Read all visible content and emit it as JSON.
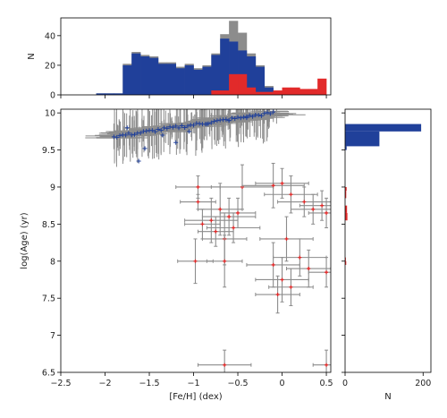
{
  "chart_data": [
    {
      "type": "histogram",
      "panel": "top",
      "ylabel": "N",
      "xlim": [
        -2.5,
        0.55
      ],
      "ylim": [
        0,
        52
      ],
      "yticks": [
        0,
        20,
        40
      ],
      "bin_edges": [
        -2.5,
        -2.4,
        -2.3,
        -2.2,
        -2.1,
        -2.0,
        -1.9,
        -1.8,
        -1.7,
        -1.6,
        -1.5,
        -1.4,
        -1.3,
        -1.2,
        -1.1,
        -1.0,
        -0.9,
        -0.8,
        -0.7,
        -0.6,
        -0.5,
        -0.4,
        -0.3,
        -0.2,
        -0.1,
        0.0,
        0.1,
        0.2,
        0.3,
        0.4,
        0.5
      ],
      "series": [
        {
          "color": "#8c8c8c",
          "values": [
            0,
            0,
            0,
            0,
            1,
            1,
            1,
            21,
            29,
            27,
            26,
            22,
            22,
            19,
            21,
            18,
            20,
            28,
            41,
            50,
            42,
            28,
            20,
            6,
            2,
            0,
            0,
            0,
            0,
            0
          ]
        },
        {
          "color": "#20409a",
          "values": [
            0,
            0,
            0,
            0,
            1,
            1,
            1,
            20,
            28,
            26,
            25,
            21,
            21,
            18,
            20,
            17,
            19,
            27,
            38,
            36,
            30,
            26,
            19,
            5,
            2,
            0,
            0,
            0,
            0,
            0
          ]
        },
        {
          "color": "#e22a2a",
          "values": [
            0,
            0,
            0,
            0,
            0,
            0,
            0,
            0,
            0,
            0,
            0,
            0,
            0,
            0,
            0,
            0,
            0,
            3,
            3,
            14,
            14,
            5,
            2,
            2,
            3,
            5,
            5,
            4,
            4,
            11
          ]
        }
      ]
    },
    {
      "type": "scatter",
      "panel": "main",
      "xlabel": "[Fe/H] (dex)",
      "ylabel": "log(Age) (yr)",
      "xlim": [
        -2.5,
        0.55
      ],
      "ylim": [
        6.5,
        10.05
      ],
      "xticks": [
        -2.5,
        -2.0,
        -1.5,
        -1.0,
        -0.5,
        0.0,
        0.5
      ],
      "yticks": [
        6.5,
        7.0,
        7.5,
        8.0,
        8.5,
        9.0,
        9.5,
        10.0
      ],
      "error_color": "#8c8c8c",
      "series": [
        {
          "color": "#20409a",
          "trend": {
            "x_start": -1.9,
            "x_end": -0.1,
            "y_start": 9.68,
            "y_end": 10.0
          },
          "points": [
            [
              -1.62,
              9.35
            ],
            [
              -1.55,
              9.52
            ],
            [
              -1.2,
              9.6
            ],
            [
              -1.75,
              9.8
            ],
            [
              -1.35,
              9.7
            ],
            [
              -1.05,
              9.75
            ],
            [
              -0.85,
              9.85
            ],
            [
              -0.6,
              9.9
            ],
            [
              -0.4,
              9.95
            ],
            [
              -0.3,
              9.97
            ]
          ]
        },
        {
          "color": "#e22a2a",
          "points": [
            {
              "x": -0.45,
              "y": 9.0,
              "xerr": 0.35,
              "yerr": 0.3
            },
            {
              "x": -0.95,
              "y": 9.0,
              "xerr": 0.25,
              "yerr": 0.15
            },
            {
              "x": -0.1,
              "y": 9.02,
              "xerr": 0.35,
              "yerr": 0.3
            },
            {
              "x": 0.0,
              "y": 9.05,
              "xerr": 0.3,
              "yerr": 0.2
            },
            {
              "x": 0.1,
              "y": 8.9,
              "xerr": 0.3,
              "yerr": 0.25
            },
            {
              "x": 0.25,
              "y": 8.8,
              "xerr": 0.3,
              "yerr": 0.2
            },
            {
              "x": 0.35,
              "y": 8.7,
              "xerr": 0.25,
              "yerr": 0.2
            },
            {
              "x": 0.45,
              "y": 8.75,
              "xerr": 0.25,
              "yerr": 0.2
            },
            {
              "x": 0.5,
              "y": 8.65,
              "xerr": 0.2,
              "yerr": 0.2
            },
            {
              "x": -0.95,
              "y": 8.8,
              "xerr": 0.2,
              "yerr": 0.1
            },
            {
              "x": -0.7,
              "y": 8.7,
              "xerr": 0.25,
              "yerr": 0.35
            },
            {
              "x": -0.8,
              "y": 8.55,
              "xerr": 0.3,
              "yerr": 0.3
            },
            {
              "x": -0.6,
              "y": 8.6,
              "xerr": 0.3,
              "yerr": 0.25
            },
            {
              "x": -0.55,
              "y": 8.45,
              "xerr": 0.3,
              "yerr": 0.2
            },
            {
              "x": -0.65,
              "y": 8.3,
              "xerr": 0.25,
              "yerr": 0.35
            },
            {
              "x": -0.9,
              "y": 8.5,
              "xerr": 0.2,
              "yerr": 0.2
            },
            {
              "x": -0.5,
              "y": 8.65,
              "xerr": 0.2,
              "yerr": 0.2
            },
            {
              "x": -0.75,
              "y": 8.4,
              "xerr": 0.2,
              "yerr": 0.2
            },
            {
              "x": 0.05,
              "y": 8.3,
              "xerr": 0.3,
              "yerr": 0.3
            },
            {
              "x": 0.2,
              "y": 8.05,
              "xerr": 0.3,
              "yerr": 0.25
            },
            {
              "x": -0.1,
              "y": 7.95,
              "xerr": 0.3,
              "yerr": 0.3
            },
            {
              "x": 0.0,
              "y": 7.75,
              "xerr": 0.3,
              "yerr": 0.3
            },
            {
              "x": 0.3,
              "y": 7.9,
              "xerr": 0.25,
              "yerr": 0.25
            },
            {
              "x": 0.1,
              "y": 7.65,
              "xerr": 0.25,
              "yerr": 0.25
            },
            {
              "x": -0.05,
              "y": 7.55,
              "xerr": 0.25,
              "yerr": 0.25
            },
            {
              "x": -0.98,
              "y": 8.0,
              "xerr": 0.2,
              "yerr": 0.3
            },
            {
              "x": -0.65,
              "y": 8.0,
              "xerr": 0.2,
              "yerr": 0.35
            },
            {
              "x": 0.5,
              "y": 7.85,
              "xerr": 0.2,
              "yerr": 0.2
            },
            {
              "x": -0.65,
              "y": 6.6,
              "xerr": 0.3,
              "yerr": 0.2
            },
            {
              "x": 0.5,
              "y": 6.6,
              "xerr": 0.15,
              "yerr": 0.2
            }
          ]
        }
      ]
    },
    {
      "type": "histogram",
      "panel": "right",
      "orientation": "horizontal",
      "xlabel": "N",
      "xlim": [
        0,
        220
      ],
      "xticks": [
        0,
        200
      ],
      "ylim": [
        6.5,
        10.05
      ],
      "bars": [
        {
          "color": "#20409a",
          "y0": 9.75,
          "y1": 9.85,
          "value": 195
        },
        {
          "color": "#20409a",
          "y0": 9.55,
          "y1": 9.75,
          "value": 88
        },
        {
          "color": "#20409a",
          "y0": 9.5,
          "y1": 9.55,
          "value": 4
        },
        {
          "color": "#e22a2a",
          "y0": 8.95,
          "y1": 9.0,
          "value": 4
        },
        {
          "color": "#e22a2a",
          "y0": 8.85,
          "y1": 8.95,
          "value": 3
        },
        {
          "color": "#e22a2a",
          "y0": 8.65,
          "y1": 8.75,
          "value": 5
        },
        {
          "color": "#e22a2a",
          "y0": 8.55,
          "y1": 8.65,
          "value": 6
        },
        {
          "color": "#e22a2a",
          "y0": 8.0,
          "y1": 8.05,
          "value": 2
        },
        {
          "color": "#e22a2a",
          "y0": 7.95,
          "y1": 8.0,
          "value": 3
        }
      ]
    }
  ]
}
